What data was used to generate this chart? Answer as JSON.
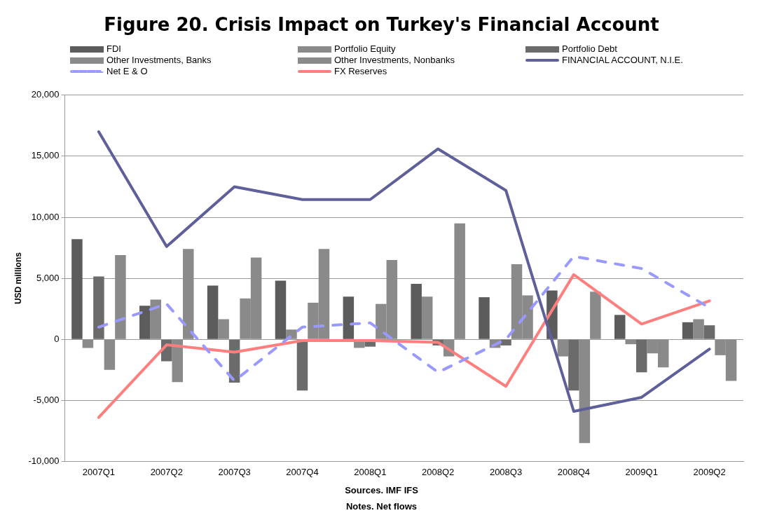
{
  "chart_data": {
    "type": "bar",
    "title": "Figure 20. Crisis Impact on Turkey's Financial Account",
    "ylabel": "USD millions",
    "categories": [
      "2007Q1",
      "2007Q2",
      "2007Q3",
      "2007Q4",
      "2008Q1",
      "2008Q2",
      "2008Q3",
      "2008Q4",
      "2009Q1",
      "2009Q2"
    ],
    "series": [
      {
        "name": "FDI",
        "color": "#5c5c5c",
        "values": [
          8200,
          2750,
          4400,
          4800,
          3500,
          4550,
          3450,
          4000,
          2000,
          1400
        ]
      },
      {
        "name": "Portfolio Equity",
        "color": "#8a8a8a",
        "values": [
          -700,
          3250,
          1650,
          800,
          -700,
          3500,
          -700,
          -1400,
          -400,
          1650
        ]
      },
      {
        "name": "Portfolio Debt",
        "color": "#6b6b6b",
        "values": [
          5150,
          -1800,
          -3550,
          -4200,
          -600,
          -500,
          -500,
          -4200,
          -2700,
          1150
        ]
      },
      {
        "name": "Other Investments, Banks",
        "color": "#8a8a8a",
        "values": [
          -2500,
          -3500,
          3350,
          3000,
          2900,
          -1400,
          6150,
          -8500,
          -1150,
          -1300
        ]
      },
      {
        "name": "Other Investments, Nonbanks",
        "color": "#8a8a8a",
        "values": [
          6900,
          7400,
          6700,
          7400,
          6500,
          9500,
          3600,
          3900,
          -2300,
          -3400
        ]
      },
      {
        "name": "FINANCIAL ACCOUNT, N.I.E.",
        "type": "line",
        "color": "#5f5f9a",
        "line_style": "solid",
        "values": [
          17000,
          7600,
          12500,
          11450,
          11450,
          15600,
          12200,
          -5900,
          -4750,
          -800
        ]
      },
      {
        "name": "Net E & O",
        "type": "line",
        "color": "#9999ff",
        "line_style": "dashed",
        "values": [
          1000,
          2900,
          -3400,
          1000,
          1350,
          -2700,
          0,
          6800,
          5800,
          2600
        ]
      },
      {
        "name": "FX Reserves",
        "type": "line",
        "color": "#ff7f7f",
        "line_style": "solid",
        "values": [
          -6400,
          -450,
          -1050,
          -100,
          -100,
          -250,
          -3850,
          5300,
          1250,
          3150
        ]
      }
    ],
    "ylim": [
      -10000,
      20000
    ],
    "yticks": [
      {
        "value": -10000,
        "label": "-10,000"
      },
      {
        "value": -5000,
        "label": "-5,000"
      },
      0,
      {
        "value": 5000,
        "label": "5,000"
      },
      {
        "value": 10000,
        "label": "10,000"
      },
      {
        "value": 15000,
        "label": "15,000"
      },
      {
        "value": 20000,
        "label": "20,000"
      }
    ],
    "grid": "y",
    "legend": "top",
    "marker": "none",
    "annotations": [
      "Sources. IMF  IFS",
      "Notes. Net flows"
    ]
  }
}
